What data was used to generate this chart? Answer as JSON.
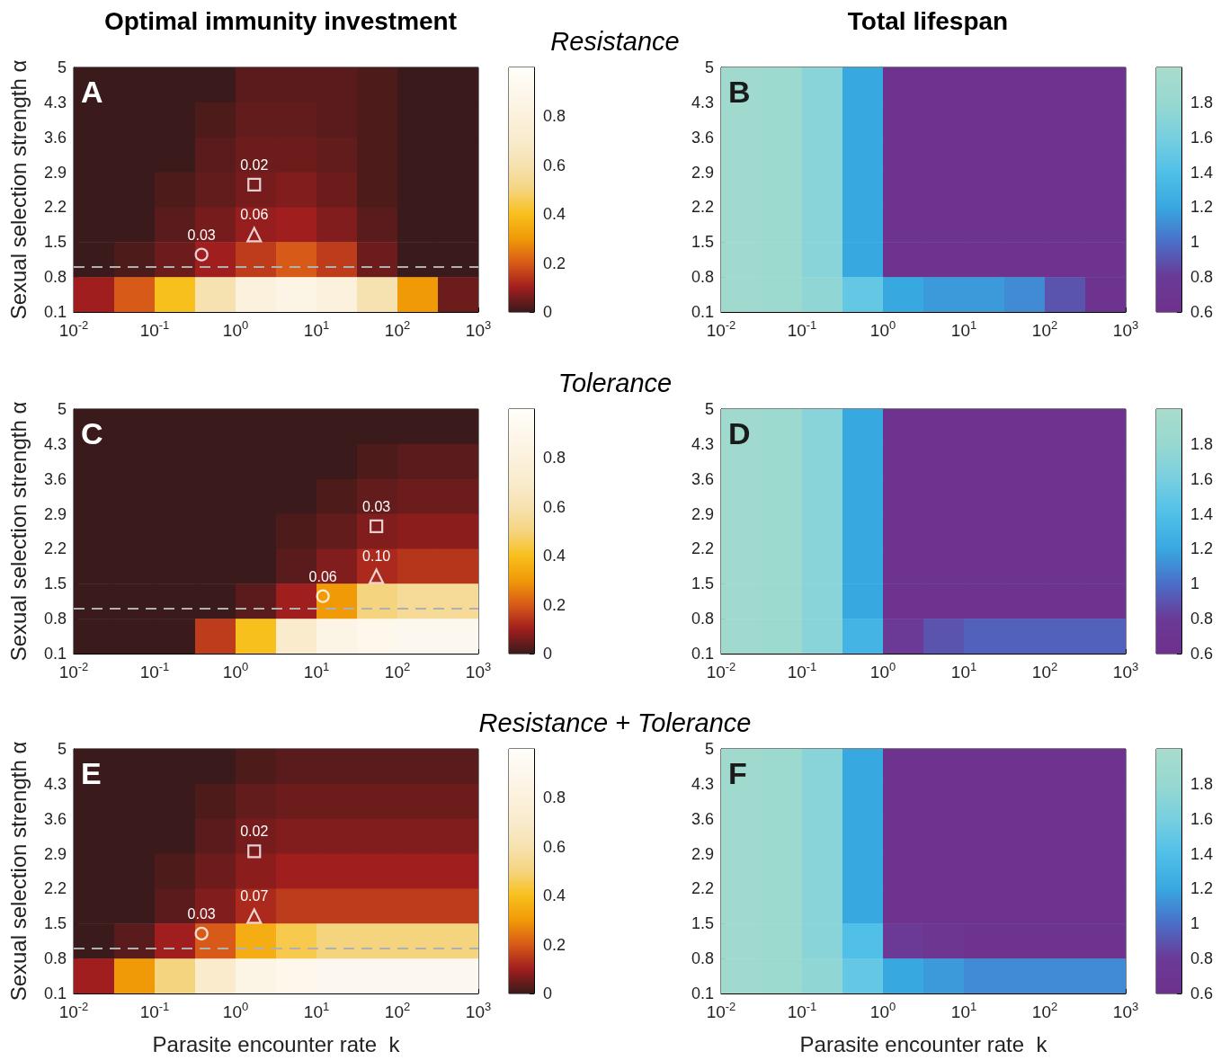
{
  "chart_data": [
    {
      "type": "other",
      "title": "Resistance"
    },
    {
      "type": "heatmap",
      "title": "Optimal immunity investment",
      "ylabel": "Sexual selection strength α",
      "log": "x",
      "x": [
        0.0178,
        0.0562,
        0.178,
        0.562,
        1.78,
        5.62,
        17.8,
        56.2,
        178,
        562
      ],
      "cells": [
        [
          0,
          0,
          0,
          0,
          0.03,
          0.03,
          0.03,
          0.02,
          0,
          0
        ],
        [
          0,
          0,
          0,
          0.02,
          0.04,
          0.04,
          0.03,
          0.02,
          0,
          0
        ],
        [
          0,
          0,
          0,
          0.03,
          0.05,
          0.05,
          0.04,
          0.02,
          0,
          0
        ],
        [
          0,
          0,
          0.02,
          0.04,
          0.06,
          0.07,
          0.05,
          0.02,
          0,
          0
        ],
        [
          0,
          0,
          0.03,
          0.06,
          0.09,
          0.1,
          0.07,
          0.03,
          0,
          0
        ],
        [
          0,
          0.02,
          0.05,
          0.1,
          0.15,
          0.2,
          0.15,
          0.05,
          0,
          0
        ],
        [
          0.1,
          0.2,
          0.4,
          0.6,
          0.8,
          0.85,
          0.8,
          0.6,
          0.3,
          0.05
        ]
      ],
      "xlim": [
        0.01,
        1000
      ],
      "xticks": [
        {
          "value": 0.01,
          "label": "10$^{-2}$"
        },
        {
          "value": 0.1,
          "label": "10$^{-1}$"
        },
        {
          "value": 1,
          "label": "10$^{0}$"
        },
        {
          "value": 10,
          "label": "10$^{1}$"
        },
        {
          "value": 100,
          "label": "10$^{2}$"
        },
        {
          "value": 1000,
          "label": "10$^{3}$"
        }
      ],
      "ylim": [
        0.1,
        5
      ],
      "yticks": [
        0.1,
        0.8,
        1.5,
        2.2,
        2.9,
        3.6,
        4.3,
        5
      ],
      "clim": [
        0,
        1
      ],
      "cticks": [
        0,
        0.2,
        0.4,
        0.6,
        0.8
      ],
      "colors": [
        "#3a1a1a",
        "#a01e1e",
        "#d85a18",
        "#f09a08",
        "#f8c01c",
        "#f5d480",
        "#f6e2b0",
        "#f9ebcc",
        "#fbf1dc",
        "#fdf7ec",
        "#fffef9"
      ],
      "ref_lines": [
        {
          "axis": "y",
          "value": 1,
          "color": "#b0b0b0",
          "line_style": "dashed"
        }
      ],
      "annotations": [
        "A",
        {
          "text": "0.02",
          "x": 1.7,
          "y": 2.65
        },
        {
          "text": "0.06",
          "x": 1.7,
          "y": 1.65
        },
        {
          "text": "0.03",
          "x": 0.38,
          "y": 1.25
        }
      ],
      "series": [
        {
          "type": "scatter",
          "marker": "square",
          "color": "#ffffff",
          "x": [
            1.7
          ],
          "values": [
            2.65
          ]
        },
        {
          "type": "scatter",
          "marker": "triangle",
          "color": "#ffffff",
          "x": [
            1.7
          ],
          "values": [
            1.65
          ]
        },
        {
          "type": "scatter",
          "marker": "circle",
          "color": "#ffffff",
          "x": [
            0.38
          ],
          "values": [
            1.25
          ]
        }
      ]
    },
    {
      "type": "heatmap",
      "title": "Total lifespan",
      "log": "x",
      "x": [
        0.0178,
        0.0562,
        0.178,
        0.562,
        1.78,
        5.62,
        17.8,
        56.2,
        178,
        562
      ],
      "cells": [
        [
          1.9,
          1.85,
          1.7,
          1.2,
          0.65,
          0.65,
          0.65,
          0.65,
          0.65,
          0.65
        ],
        [
          1.9,
          1.85,
          1.7,
          1.2,
          0.65,
          0.65,
          0.65,
          0.65,
          0.65,
          0.65
        ],
        [
          1.9,
          1.85,
          1.7,
          1.2,
          0.65,
          0.65,
          0.65,
          0.65,
          0.65,
          0.65
        ],
        [
          1.9,
          1.85,
          1.7,
          1.2,
          0.65,
          0.65,
          0.65,
          0.65,
          0.65,
          0.65
        ],
        [
          1.9,
          1.85,
          1.7,
          1.2,
          0.65,
          0.65,
          0.65,
          0.65,
          0.65,
          0.65
        ],
        [
          1.9,
          1.85,
          1.7,
          1.2,
          0.65,
          0.65,
          0.65,
          0.65,
          0.65,
          0.65
        ],
        [
          1.9,
          1.85,
          1.75,
          1.5,
          1.2,
          1.15,
          1.15,
          1.1,
          0.9,
          0.65
        ]
      ],
      "xlim": [
        0.01,
        1000
      ],
      "xticks": [
        {
          "value": 0.01,
          "label": "10$^{-2}$"
        },
        {
          "value": 0.1,
          "label": "10$^{-1}$"
        },
        {
          "value": 1,
          "label": "10$^{0}$"
        },
        {
          "value": 10,
          "label": "10$^{1}$"
        },
        {
          "value": 100,
          "label": "10$^{2}$"
        },
        {
          "value": 1000,
          "label": "10$^{3}$"
        }
      ],
      "ylim": [
        0.1,
        5
      ],
      "yticks": [
        0.1,
        0.8,
        1.5,
        2.2,
        2.9,
        3.6,
        4.3,
        5
      ],
      "clim": [
        0.6,
        2
      ],
      "cticks": [
        0.6,
        0.8,
        1,
        1.2,
        1.4,
        1.6,
        1.8
      ],
      "colors": [
        "#6e318c",
        "#6a3a96",
        "#4a6ec8",
        "#38a8e0",
        "#50c0e8",
        "#78cfe0",
        "#98d8d0",
        "#a8dccc"
      ],
      "annotations": [
        "B"
      ]
    },
    {
      "type": "other",
      "title": "Tolerance"
    },
    {
      "type": "heatmap",
      "ylabel": "Sexual selection strength α",
      "log": "x",
      "x": [
        0.0178,
        0.0562,
        0.178,
        0.562,
        1.78,
        5.62,
        17.8,
        56.2,
        178,
        562
      ],
      "cells": [
        [
          0,
          0,
          0,
          0,
          0,
          0,
          0,
          0,
          0,
          0
        ],
        [
          0,
          0,
          0,
          0,
          0,
          0,
          0,
          0.02,
          0.03,
          0.03
        ],
        [
          0,
          0,
          0,
          0,
          0,
          0,
          0.02,
          0.04,
          0.05,
          0.05
        ],
        [
          0,
          0,
          0,
          0,
          0,
          0.02,
          0.04,
          0.07,
          0.08,
          0.08
        ],
        [
          0,
          0,
          0,
          0,
          0,
          0.03,
          0.07,
          0.12,
          0.14,
          0.14
        ],
        [
          0,
          0,
          0,
          0,
          0.03,
          0.1,
          0.3,
          0.5,
          0.55,
          0.55
        ],
        [
          0,
          0,
          0,
          0.15,
          0.4,
          0.7,
          0.85,
          0.9,
          0.92,
          0.92
        ]
      ],
      "xlim": [
        0.01,
        1000
      ],
      "xticks": [
        {
          "value": 0.01,
          "label": "10$^{-2}$"
        },
        {
          "value": 0.1,
          "label": "10$^{-1}$"
        },
        {
          "value": 1,
          "label": "10$^{0}$"
        },
        {
          "value": 10,
          "label": "10$^{1}$"
        },
        {
          "value": 100,
          "label": "10$^{2}$"
        },
        {
          "value": 1000,
          "label": "10$^{3}$"
        }
      ],
      "ylim": [
        0.1,
        5
      ],
      "yticks": [
        0.1,
        0.8,
        1.5,
        2.2,
        2.9,
        3.6,
        4.3,
        5
      ],
      "clim": [
        0,
        1
      ],
      "cticks": [
        0,
        0.2,
        0.4,
        0.6,
        0.8
      ],
      "colors": [
        "#3a1a1a",
        "#a01e1e",
        "#d85a18",
        "#f09a08",
        "#f8c01c",
        "#f5d480",
        "#f6e2b0",
        "#f9ebcc",
        "#fbf1dc",
        "#fdf7ec",
        "#fffef9"
      ],
      "ref_lines": [
        {
          "axis": "y",
          "value": 1,
          "color": "#b0b0b0",
          "line_style": "dashed"
        }
      ],
      "annotations": [
        "C",
        {
          "text": "0.03",
          "x": 55,
          "y": 2.65
        },
        {
          "text": "0.10",
          "x": 55,
          "y": 1.65
        },
        {
          "text": "0.06",
          "x": 12,
          "y": 1.25
        }
      ],
      "series": [
        {
          "type": "scatter",
          "marker": "square",
          "color": "#ffffff",
          "x": [
            55
          ],
          "values": [
            2.65
          ]
        },
        {
          "type": "scatter",
          "marker": "triangle",
          "color": "#ffffff",
          "x": [
            55
          ],
          "values": [
            1.65
          ]
        },
        {
          "type": "scatter",
          "marker": "circle",
          "color": "#ffffff",
          "x": [
            12
          ],
          "values": [
            1.25
          ]
        }
      ]
    },
    {
      "type": "heatmap",
      "log": "x",
      "x": [
        0.0178,
        0.0562,
        0.178,
        0.562,
        1.78,
        5.62,
        17.8,
        56.2,
        178,
        562
      ],
      "cells": [
        [
          1.9,
          1.85,
          1.7,
          1.2,
          0.65,
          0.65,
          0.65,
          0.65,
          0.65,
          0.65
        ],
        [
          1.9,
          1.85,
          1.7,
          1.2,
          0.65,
          0.65,
          0.65,
          0.65,
          0.65,
          0.65
        ],
        [
          1.9,
          1.85,
          1.7,
          1.2,
          0.65,
          0.65,
          0.65,
          0.65,
          0.65,
          0.65
        ],
        [
          1.9,
          1.85,
          1.7,
          1.2,
          0.65,
          0.65,
          0.65,
          0.65,
          0.65,
          0.65
        ],
        [
          1.9,
          1.85,
          1.7,
          1.2,
          0.65,
          0.65,
          0.65,
          0.65,
          0.65,
          0.65
        ],
        [
          1.9,
          1.85,
          1.7,
          1.2,
          0.65,
          0.65,
          0.65,
          0.65,
          0.65,
          0.65
        ],
        [
          1.9,
          1.85,
          1.7,
          1.3,
          0.8,
          0.9,
          0.95,
          0.95,
          0.95,
          0.95
        ]
      ],
      "xlim": [
        0.01,
        1000
      ],
      "xticks": [
        {
          "value": 0.01,
          "label": "10$^{-2}$"
        },
        {
          "value": 0.1,
          "label": "10$^{-1}$"
        },
        {
          "value": 1,
          "label": "10$^{0}$"
        },
        {
          "value": 10,
          "label": "10$^{1}$"
        },
        {
          "value": 100,
          "label": "10$^{2}$"
        },
        {
          "value": 1000,
          "label": "10$^{3}$"
        }
      ],
      "ylim": [
        0.1,
        5
      ],
      "yticks": [
        0.1,
        0.8,
        1.5,
        2.2,
        2.9,
        3.6,
        4.3,
        5
      ],
      "clim": [
        0.6,
        2
      ],
      "cticks": [
        0.6,
        0.8,
        1,
        1.2,
        1.4,
        1.6,
        1.8
      ],
      "colors": [
        "#6e318c",
        "#6a3a96",
        "#4a6ec8",
        "#38a8e0",
        "#50c0e8",
        "#78cfe0",
        "#98d8d0",
        "#a8dccc"
      ],
      "annotations": [
        "D"
      ]
    },
    {
      "type": "other",
      "title": "Resistance + Tolerance"
    },
    {
      "type": "heatmap",
      "xlabel": "Parasite encounter rate  k",
      "ylabel": "Sexual selection strength α",
      "log": "x",
      "x": [
        0.0178,
        0.0562,
        0.178,
        0.562,
        1.78,
        5.62,
        17.8,
        56.2,
        178,
        562
      ],
      "cells": [
        [
          0,
          0,
          0,
          0,
          0.02,
          0.03,
          0.03,
          0.03,
          0.03,
          0.03
        ],
        [
          0,
          0,
          0,
          0.02,
          0.04,
          0.05,
          0.05,
          0.05,
          0.05,
          0.05
        ],
        [
          0,
          0,
          0,
          0.03,
          0.06,
          0.07,
          0.07,
          0.07,
          0.07,
          0.07
        ],
        [
          0,
          0,
          0.02,
          0.05,
          0.08,
          0.1,
          0.1,
          0.1,
          0.1,
          0.1
        ],
        [
          0,
          0,
          0.03,
          0.07,
          0.12,
          0.15,
          0.15,
          0.15,
          0.15,
          0.15
        ],
        [
          0,
          0.03,
          0.1,
          0.2,
          0.35,
          0.45,
          0.5,
          0.5,
          0.5,
          0.5
        ],
        [
          0.1,
          0.3,
          0.5,
          0.7,
          0.85,
          0.9,
          0.92,
          0.92,
          0.92,
          0.92
        ]
      ],
      "xlim": [
        0.01,
        1000
      ],
      "xticks": [
        {
          "value": 0.01,
          "label": "10$^{-2}$"
        },
        {
          "value": 0.1,
          "label": "10$^{-1}$"
        },
        {
          "value": 1,
          "label": "10$^{0}$"
        },
        {
          "value": 10,
          "label": "10$^{1}$"
        },
        {
          "value": 100,
          "label": "10$^{2}$"
        },
        {
          "value": 1000,
          "label": "10$^{3}$"
        }
      ],
      "ylim": [
        0.1,
        5
      ],
      "yticks": [
        0.1,
        0.8,
        1.5,
        2.2,
        2.9,
        3.6,
        4.3,
        5
      ],
      "clim": [
        0,
        1
      ],
      "cticks": [
        0,
        0.2,
        0.4,
        0.6,
        0.8
      ],
      "colors": [
        "#3a1a1a",
        "#a01e1e",
        "#d85a18",
        "#f09a08",
        "#f8c01c",
        "#f5d480",
        "#f6e2b0",
        "#f9ebcc",
        "#fbf1dc",
        "#fdf7ec",
        "#fffef9"
      ],
      "ref_lines": [
        {
          "axis": "y",
          "value": 1,
          "color": "#b0b0b0",
          "line_style": "dashed"
        }
      ],
      "annotations": [
        "E",
        {
          "text": "0.02",
          "x": 1.7,
          "y": 2.95
        },
        {
          "text": "0.07",
          "x": 1.7,
          "y": 1.65
        },
        {
          "text": "0.03",
          "x": 0.38,
          "y": 1.3
        }
      ],
      "series": [
        {
          "type": "scatter",
          "marker": "square",
          "color": "#ffffff",
          "x": [
            1.7
          ],
          "values": [
            2.95
          ]
        },
        {
          "type": "scatter",
          "marker": "triangle",
          "color": "#ffffff",
          "x": [
            1.7
          ],
          "values": [
            1.65
          ]
        },
        {
          "type": "scatter",
          "marker": "circle",
          "color": "#ffffff",
          "x": [
            0.38
          ],
          "values": [
            1.3
          ]
        }
      ]
    },
    {
      "type": "heatmap",
      "xlabel": "Parasite encounter rate  k",
      "log": "x",
      "x": [
        0.0178,
        0.0562,
        0.178,
        0.562,
        1.78,
        5.62,
        17.8,
        56.2,
        178,
        562
      ],
      "cells": [
        [
          1.9,
          1.85,
          1.7,
          1.2,
          0.65,
          0.65,
          0.65,
          0.65,
          0.65,
          0.65
        ],
        [
          1.9,
          1.85,
          1.7,
          1.2,
          0.65,
          0.65,
          0.65,
          0.65,
          0.65,
          0.65
        ],
        [
          1.9,
          1.85,
          1.7,
          1.2,
          0.65,
          0.65,
          0.65,
          0.65,
          0.65,
          0.65
        ],
        [
          1.9,
          1.85,
          1.7,
          1.2,
          0.65,
          0.65,
          0.65,
          0.65,
          0.65,
          0.65
        ],
        [
          1.9,
          1.85,
          1.7,
          1.2,
          0.65,
          0.65,
          0.65,
          0.65,
          0.65,
          0.65
        ],
        [
          1.9,
          1.85,
          1.7,
          1.4,
          0.8,
          0.7,
          0.65,
          0.65,
          0.65,
          0.65
        ],
        [
          1.9,
          1.85,
          1.75,
          1.5,
          1.2,
          1.15,
          1.1,
          1.1,
          1.1,
          1.1
        ]
      ],
      "xlim": [
        0.01,
        1000
      ],
      "xticks": [
        {
          "value": 0.01,
          "label": "10$^{-2}$"
        },
        {
          "value": 0.1,
          "label": "10$^{-1}$"
        },
        {
          "value": 1,
          "label": "10$^{0}$"
        },
        {
          "value": 10,
          "label": "10$^{1}$"
        },
        {
          "value": 100,
          "label": "10$^{2}$"
        },
        {
          "value": 1000,
          "label": "10$^{3}$"
        }
      ],
      "ylim": [
        0.1,
        5
      ],
      "yticks": [
        0.1,
        0.8,
        1.5,
        2.2,
        2.9,
        3.6,
        4.3,
        5
      ],
      "clim": [
        0.6,
        2
      ],
      "cticks": [
        0.6,
        0.8,
        1,
        1.2,
        1.4,
        1.6,
        1.8
      ],
      "colors": [
        "#6e318c",
        "#6a3a96",
        "#4a6ec8",
        "#38a8e0",
        "#50c0e8",
        "#78cfe0",
        "#98d8d0",
        "#a8dccc"
      ],
      "annotations": [
        "F"
      ]
    }
  ]
}
